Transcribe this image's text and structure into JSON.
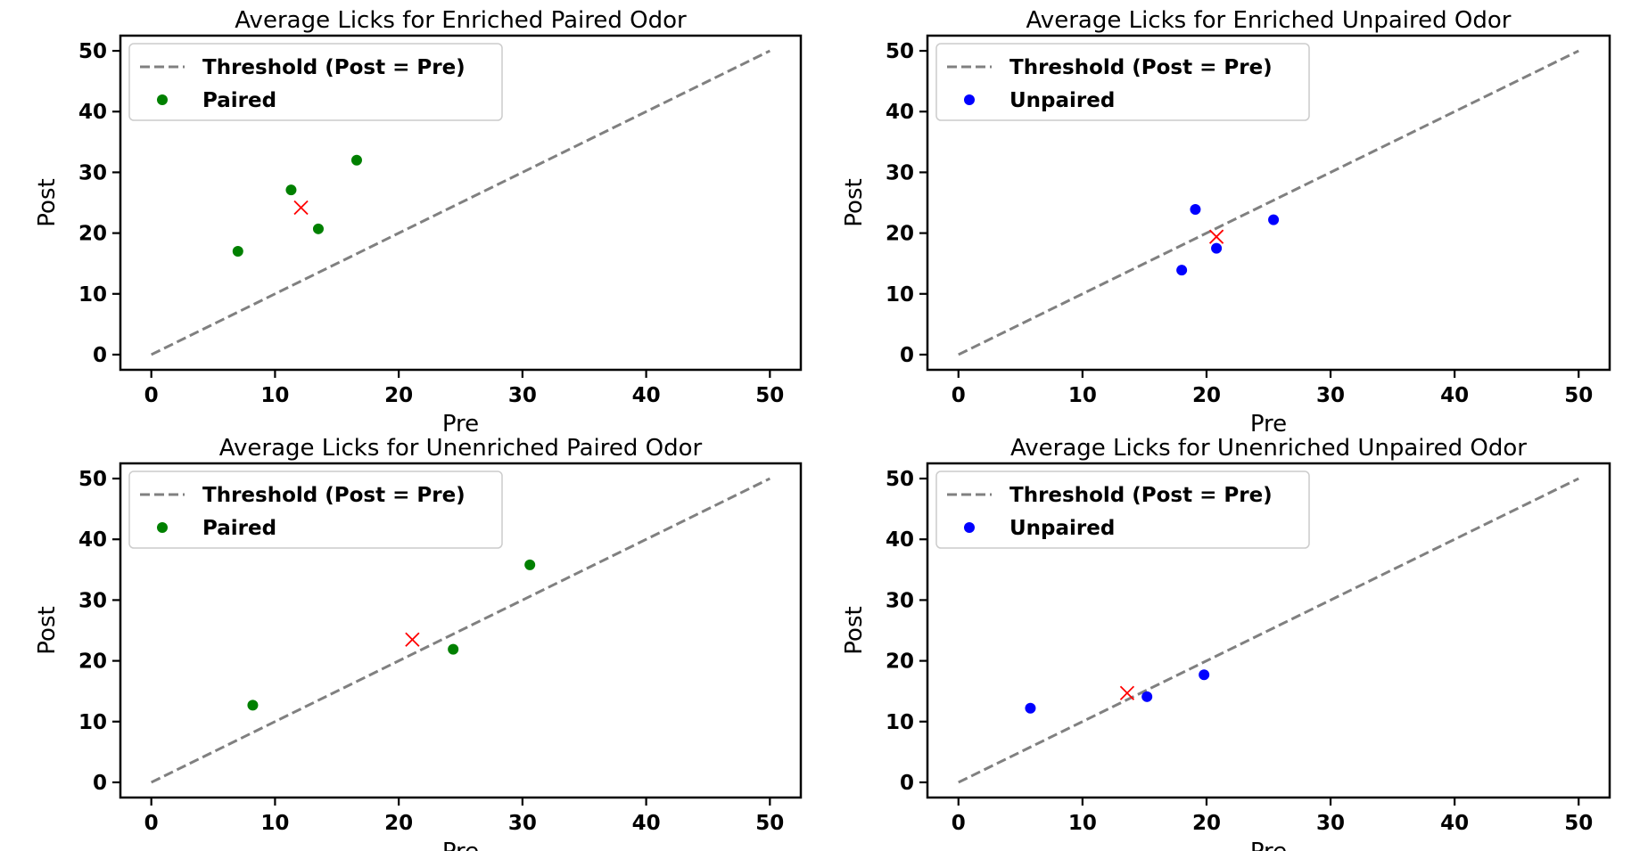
{
  "chart_data": [
    {
      "type": "scatter",
      "title": "Average Licks for Enriched Paired Odor",
      "xlabel": "Pre",
      "ylabel": "Post",
      "xlim": [
        -2.5,
        52.5
      ],
      "ylim": [
        -2.5,
        52.5
      ],
      "xticks": [
        0,
        10,
        20,
        30,
        40,
        50
      ],
      "yticks": [
        0,
        10,
        20,
        30,
        40,
        50
      ],
      "legend_position": "upper-left",
      "threshold": {
        "name": "Threshold (Post = Pre)",
        "x": [
          0,
          50
        ],
        "y": [
          0,
          50
        ],
        "color": "#808080",
        "style": "dashed"
      },
      "series": [
        {
          "name": "Paired",
          "color": "#008000",
          "x": [
            7.0,
            11.3,
            13.5,
            16.6
          ],
          "y": [
            17.0,
            27.1,
            20.7,
            32.0
          ]
        }
      ],
      "mean_point": {
        "x": 12.1,
        "y": 24.2,
        "color": "#ff0000"
      }
    },
    {
      "type": "scatter",
      "title": "Average Licks for Enriched Unpaired Odor",
      "xlabel": "Pre",
      "ylabel": "Post",
      "xlim": [
        -2.5,
        52.5
      ],
      "ylim": [
        -2.5,
        52.5
      ],
      "xticks": [
        0,
        10,
        20,
        30,
        40,
        50
      ],
      "yticks": [
        0,
        10,
        20,
        30,
        40,
        50
      ],
      "legend_position": "upper-left",
      "threshold": {
        "name": "Threshold (Post = Pre)",
        "x": [
          0,
          50
        ],
        "y": [
          0,
          50
        ],
        "color": "#808080",
        "style": "dashed"
      },
      "series": [
        {
          "name": "Unpaired",
          "color": "#0000ff",
          "x": [
            18.0,
            19.1,
            20.8,
            25.4
          ],
          "y": [
            13.9,
            23.9,
            17.5,
            22.2
          ]
        }
      ],
      "mean_point": {
        "x": 20.8,
        "y": 19.4,
        "color": "#ff0000"
      }
    },
    {
      "type": "scatter",
      "title": "Average Licks for Unenriched Paired Odor",
      "xlabel": "Pre",
      "ylabel": "Post",
      "xlim": [
        -2.5,
        52.5
      ],
      "ylim": [
        -2.5,
        52.5
      ],
      "xticks": [
        0,
        10,
        20,
        30,
        40,
        50
      ],
      "yticks": [
        0,
        10,
        20,
        30,
        40,
        50
      ],
      "legend_position": "upper-left",
      "threshold": {
        "name": "Threshold (Post = Pre)",
        "x": [
          0,
          50
        ],
        "y": [
          0,
          50
        ],
        "color": "#808080",
        "style": "dashed"
      },
      "series": [
        {
          "name": "Paired",
          "color": "#008000",
          "x": [
            8.2,
            24.4,
            30.6
          ],
          "y": [
            12.7,
            21.9,
            35.8
          ]
        }
      ],
      "mean_point": {
        "x": 21.1,
        "y": 23.5,
        "color": "#ff0000"
      }
    },
    {
      "type": "scatter",
      "title": "Average Licks for Unenriched Unpaired Odor",
      "xlabel": "Pre",
      "ylabel": "Post",
      "xlim": [
        -2.5,
        52.5
      ],
      "ylim": [
        -2.5,
        52.5
      ],
      "xticks": [
        0,
        10,
        20,
        30,
        40,
        50
      ],
      "yticks": [
        0,
        10,
        20,
        30,
        40,
        50
      ],
      "legend_position": "upper-left",
      "threshold": {
        "name": "Threshold (Post = Pre)",
        "x": [
          0,
          50
        ],
        "y": [
          0,
          50
        ],
        "color": "#808080",
        "style": "dashed"
      },
      "series": [
        {
          "name": "Unpaired",
          "color": "#0000ff",
          "x": [
            5.8,
            15.2,
            19.8
          ],
          "y": [
            12.2,
            14.1,
            17.7
          ]
        }
      ],
      "mean_point": {
        "x": 13.6,
        "y": 14.7,
        "color": "#ff0000"
      }
    }
  ]
}
